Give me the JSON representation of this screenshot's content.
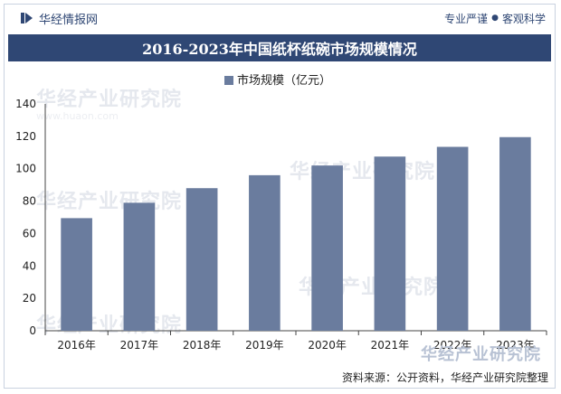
{
  "header": {
    "brand": "华经情报网",
    "slogan_left": "专业严谨",
    "slogan_sep": "●",
    "slogan_right": "客观科学"
  },
  "watermark": {
    "text": "华经产业研究院",
    "sub": "www.huaon.com"
  },
  "source": "资料来源：公开资料，华经产业研究院整理",
  "colors": {
    "bar": "#6a7c9e",
    "title_bg": "#2f4774",
    "axis": "#444444"
  },
  "chart_data": {
    "type": "bar",
    "title": "2016-2023年中国纸杯纸碗市场规模情况",
    "series_name": "市场规模（亿元）",
    "categories": [
      "2016年",
      "2017年",
      "2018年",
      "2019年",
      "2020年",
      "2021年",
      "2022年",
      "2023年"
    ],
    "values": [
      69.5,
      79,
      88,
      96,
      102,
      107.5,
      113.5,
      119.5
    ],
    "ylim": [
      0,
      140
    ],
    "yticks": [
      0,
      20,
      40,
      60,
      80,
      100,
      120,
      140
    ],
    "xlabel": "",
    "ylabel": "",
    "legend_position": "top-center",
    "grid": false
  }
}
